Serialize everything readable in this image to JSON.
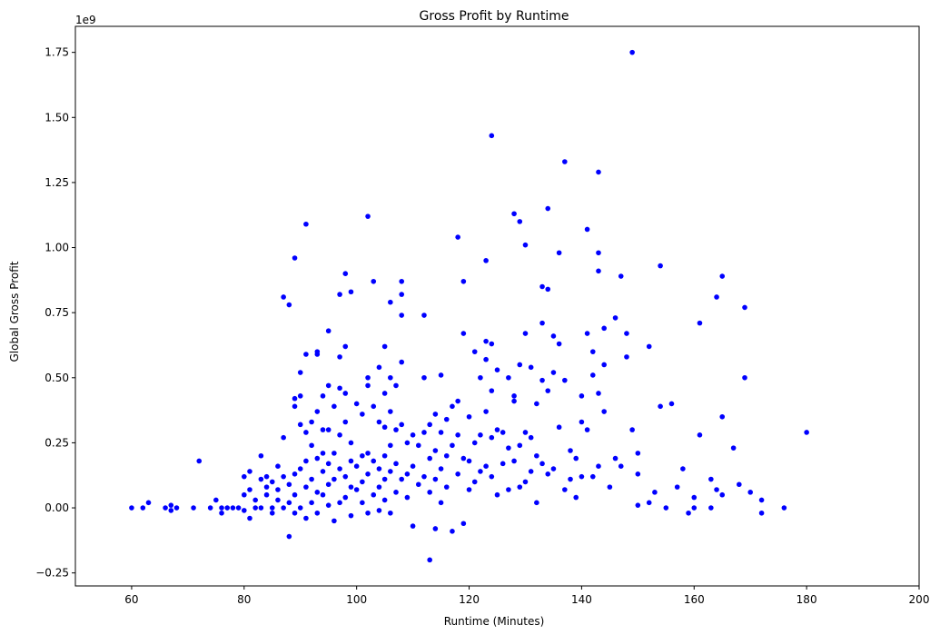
{
  "chart_data": {
    "type": "scatter",
    "title": "Gross Profit by Runtime",
    "xlabel": "Runtime (Minutes)",
    "ylabel": "Global Gross Profit",
    "offset_label": "1e9",
    "xlim": [
      50,
      200
    ],
    "ylim": [
      -0.3,
      1.85
    ],
    "xticks": [
      60,
      80,
      100,
      120,
      140,
      160,
      180,
      200
    ],
    "yticks": [
      -0.25,
      0.0,
      0.25,
      0.5,
      0.75,
      1.0,
      1.25,
      1.5,
      1.75
    ],
    "xtick_labels": [
      "60",
      "80",
      "100",
      "120",
      "140",
      "160",
      "180",
      "200"
    ],
    "ytick_labels": [
      "−0.25",
      "0.00",
      "0.25",
      "0.50",
      "0.75",
      "1.00",
      "1.25",
      "1.50",
      "1.75"
    ],
    "grid": false,
    "marker_color": "#0000ff",
    "points": [
      [
        60,
        0.0
      ],
      [
        62,
        0.0
      ],
      [
        63,
        0.02
      ],
      [
        66,
        0.0
      ],
      [
        67,
        -0.01
      ],
      [
        67,
        0.01
      ],
      [
        68,
        0.0
      ],
      [
        71,
        0.0
      ],
      [
        72,
        0.18
      ],
      [
        74,
        0.0
      ],
      [
        75,
        0.03
      ],
      [
        76,
        0.0
      ],
      [
        76,
        -0.02
      ],
      [
        77,
        0.0
      ],
      [
        78,
        0.0
      ],
      [
        79,
        0.0
      ],
      [
        80,
        0.05
      ],
      [
        80,
        0.12
      ],
      [
        80,
        -0.01
      ],
      [
        81,
        0.14
      ],
      [
        81,
        -0.04
      ],
      [
        81,
        0.07
      ],
      [
        82,
        0.0
      ],
      [
        82,
        0.03
      ],
      [
        83,
        0.2
      ],
      [
        83,
        0.11
      ],
      [
        83,
        0.0
      ],
      [
        84,
        0.08
      ],
      [
        84,
        0.05
      ],
      [
        84,
        0.12
      ],
      [
        85,
        0.0
      ],
      [
        85,
        0.1
      ],
      [
        85,
        -0.02
      ],
      [
        86,
        0.16
      ],
      [
        86,
        0.03
      ],
      [
        86,
        0.07
      ],
      [
        87,
        0.81
      ],
      [
        87,
        0.27
      ],
      [
        87,
        0.12
      ],
      [
        87,
        0.0
      ],
      [
        88,
        0.78
      ],
      [
        88,
        -0.11
      ],
      [
        88,
        0.09
      ],
      [
        88,
        0.02
      ],
      [
        89,
        0.96
      ],
      [
        89,
        0.42
      ],
      [
        89,
        0.39
      ],
      [
        89,
        0.13
      ],
      [
        89,
        0.05
      ],
      [
        89,
        -0.02
      ],
      [
        90,
        0.43
      ],
      [
        90,
        0.52
      ],
      [
        90,
        0.32
      ],
      [
        90,
        0.15
      ],
      [
        90,
        0.0
      ],
      [
        91,
        1.09
      ],
      [
        91,
        0.59
      ],
      [
        91,
        0.29
      ],
      [
        91,
        0.18
      ],
      [
        91,
        0.08
      ],
      [
        91,
        -0.04
      ],
      [
        92,
        0.33
      ],
      [
        92,
        0.24
      ],
      [
        92,
        0.11
      ],
      [
        92,
        0.02
      ],
      [
        93,
        0.6
      ],
      [
        93,
        0.59
      ],
      [
        93,
        0.37
      ],
      [
        93,
        0.19
      ],
      [
        93,
        0.06
      ],
      [
        93,
        -0.02
      ],
      [
        94,
        0.43
      ],
      [
        94,
        0.3
      ],
      [
        94,
        0.21
      ],
      [
        94,
        0.14
      ],
      [
        94,
        0.05
      ],
      [
        95,
        0.68
      ],
      [
        95,
        0.47
      ],
      [
        95,
        0.3
      ],
      [
        95,
        0.17
      ],
      [
        95,
        0.09
      ],
      [
        95,
        0.01
      ],
      [
        96,
        0.39
      ],
      [
        96,
        0.21
      ],
      [
        96,
        0.11
      ],
      [
        96,
        -0.05
      ],
      [
        97,
        0.82
      ],
      [
        97,
        0.58
      ],
      [
        97,
        0.46
      ],
      [
        97,
        0.28
      ],
      [
        97,
        0.15
      ],
      [
        97,
        0.02
      ],
      [
        98,
        0.9
      ],
      [
        98,
        0.62
      ],
      [
        98,
        0.44
      ],
      [
        98,
        0.33
      ],
      [
        98,
        0.12
      ],
      [
        98,
        0.04
      ],
      [
        99,
        0.83
      ],
      [
        99,
        0.25
      ],
      [
        99,
        0.18
      ],
      [
        99,
        0.08
      ],
      [
        99,
        -0.03
      ],
      [
        100,
        0.4
      ],
      [
        100,
        0.16
      ],
      [
        100,
        0.07
      ],
      [
        101,
        0.36
      ],
      [
        101,
        0.2
      ],
      [
        101,
        0.1
      ],
      [
        101,
        0.02
      ],
      [
        102,
        1.12
      ],
      [
        102,
        0.5
      ],
      [
        102,
        0.47
      ],
      [
        102,
        0.21
      ],
      [
        102,
        0.13
      ],
      [
        102,
        -0.02
      ],
      [
        103,
        0.87
      ],
      [
        103,
        0.39
      ],
      [
        103,
        0.18
      ],
      [
        103,
        0.05
      ],
      [
        104,
        0.54
      ],
      [
        104,
        0.33
      ],
      [
        104,
        0.15
      ],
      [
        104,
        0.08
      ],
      [
        104,
        -0.01
      ],
      [
        105,
        0.62
      ],
      [
        105,
        0.44
      ],
      [
        105,
        0.31
      ],
      [
        105,
        0.2
      ],
      [
        105,
        0.11
      ],
      [
        105,
        0.03
      ],
      [
        106,
        0.79
      ],
      [
        106,
        0.5
      ],
      [
        106,
        0.37
      ],
      [
        106,
        0.24
      ],
      [
        106,
        0.14
      ],
      [
        106,
        -0.02
      ],
      [
        107,
        0.47
      ],
      [
        107,
        0.3
      ],
      [
        107,
        0.17
      ],
      [
        107,
        0.06
      ],
      [
        108,
        0.87
      ],
      [
        108,
        0.82
      ],
      [
        108,
        0.74
      ],
      [
        108,
        0.56
      ],
      [
        108,
        0.32
      ],
      [
        108,
        0.11
      ],
      [
        109,
        0.25
      ],
      [
        109,
        0.13
      ],
      [
        109,
        0.04
      ],
      [
        110,
        0.28
      ],
      [
        110,
        0.16
      ],
      [
        110,
        -0.07
      ],
      [
        111,
        0.24
      ],
      [
        111,
        0.09
      ],
      [
        112,
        0.74
      ],
      [
        112,
        0.5
      ],
      [
        112,
        0.29
      ],
      [
        112,
        0.12
      ],
      [
        113,
        -0.2
      ],
      [
        113,
        0.32
      ],
      [
        113,
        0.19
      ],
      [
        113,
        0.06
      ],
      [
        114,
        0.36
      ],
      [
        114,
        0.22
      ],
      [
        114,
        0.11
      ],
      [
        114,
        -0.08
      ],
      [
        115,
        0.51
      ],
      [
        115,
        0.29
      ],
      [
        115,
        0.15
      ],
      [
        115,
        0.02
      ],
      [
        116,
        0.34
      ],
      [
        116,
        0.2
      ],
      [
        116,
        0.08
      ],
      [
        117,
        0.39
      ],
      [
        117,
        0.24
      ],
      [
        117,
        -0.09
      ],
      [
        118,
        1.04
      ],
      [
        118,
        0.41
      ],
      [
        118,
        0.28
      ],
      [
        118,
        0.13
      ],
      [
        119,
        0.87
      ],
      [
        119,
        0.67
      ],
      [
        119,
        0.19
      ],
      [
        119,
        -0.06
      ],
      [
        120,
        0.35
      ],
      [
        120,
        0.18
      ],
      [
        120,
        0.07
      ],
      [
        121,
        0.6
      ],
      [
        121,
        0.25
      ],
      [
        121,
        0.1
      ],
      [
        122,
        0.5
      ],
      [
        122,
        0.28
      ],
      [
        122,
        0.14
      ],
      [
        123,
        0.95
      ],
      [
        123,
        0.64
      ],
      [
        123,
        0.57
      ],
      [
        123,
        0.37
      ],
      [
        123,
        0.16
      ],
      [
        124,
        1.43
      ],
      [
        124,
        0.63
      ],
      [
        124,
        0.45
      ],
      [
        124,
        0.27
      ],
      [
        124,
        0.12
      ],
      [
        125,
        0.53
      ],
      [
        125,
        0.3
      ],
      [
        125,
        0.05
      ],
      [
        126,
        0.29
      ],
      [
        126,
        0.17
      ],
      [
        127,
        0.5
      ],
      [
        127,
        0.23
      ],
      [
        127,
        0.07
      ],
      [
        128,
        1.13
      ],
      [
        128,
        0.43
      ],
      [
        128,
        0.41
      ],
      [
        128,
        0.18
      ],
      [
        129,
        1.1
      ],
      [
        129,
        0.55
      ],
      [
        129,
        0.24
      ],
      [
        129,
        0.08
      ],
      [
        130,
        1.01
      ],
      [
        130,
        0.67
      ],
      [
        130,
        0.29
      ],
      [
        130,
        0.1
      ],
      [
        131,
        0.54
      ],
      [
        131,
        0.27
      ],
      [
        131,
        0.14
      ],
      [
        132,
        0.4
      ],
      [
        132,
        0.2
      ],
      [
        132,
        0.02
      ],
      [
        133,
        0.85
      ],
      [
        133,
        0.71
      ],
      [
        133,
        0.49
      ],
      [
        133,
        0.17
      ],
      [
        134,
        1.15
      ],
      [
        134,
        0.84
      ],
      [
        134,
        0.45
      ],
      [
        134,
        0.13
      ],
      [
        135,
        0.66
      ],
      [
        135,
        0.52
      ],
      [
        135,
        0.15
      ],
      [
        136,
        0.98
      ],
      [
        136,
        0.63
      ],
      [
        136,
        0.31
      ],
      [
        137,
        1.33
      ],
      [
        137,
        0.49
      ],
      [
        137,
        0.07
      ],
      [
        138,
        0.22
      ],
      [
        138,
        0.11
      ],
      [
        139,
        0.19
      ],
      [
        139,
        0.04
      ],
      [
        140,
        0.43
      ],
      [
        140,
        0.33
      ],
      [
        140,
        0.12
      ],
      [
        141,
        1.07
      ],
      [
        141,
        0.67
      ],
      [
        141,
        0.3
      ],
      [
        142,
        0.6
      ],
      [
        142,
        0.51
      ],
      [
        142,
        0.12
      ],
      [
        143,
        1.29
      ],
      [
        143,
        0.98
      ],
      [
        143,
        0.91
      ],
      [
        143,
        0.44
      ],
      [
        143,
        0.16
      ],
      [
        144,
        0.69
      ],
      [
        144,
        0.55
      ],
      [
        144,
        0.37
      ],
      [
        145,
        0.08
      ],
      [
        146,
        0.73
      ],
      [
        146,
        0.19
      ],
      [
        147,
        0.89
      ],
      [
        147,
        0.16
      ],
      [
        148,
        0.67
      ],
      [
        148,
        0.58
      ],
      [
        149,
        1.75
      ],
      [
        149,
        0.3
      ],
      [
        150,
        0.21
      ],
      [
        150,
        0.13
      ],
      [
        150,
        0.01
      ],
      [
        152,
        0.62
      ],
      [
        152,
        0.02
      ],
      [
        153,
        0.06
      ],
      [
        154,
        0.93
      ],
      [
        154,
        0.39
      ],
      [
        155,
        0.0
      ],
      [
        156,
        0.4
      ],
      [
        157,
        0.08
      ],
      [
        158,
        0.15
      ],
      [
        159,
        -0.02
      ],
      [
        160,
        0.04
      ],
      [
        160,
        0.0
      ],
      [
        161,
        0.71
      ],
      [
        161,
        0.28
      ],
      [
        163,
        0.11
      ],
      [
        163,
        0.0
      ],
      [
        164,
        0.81
      ],
      [
        164,
        0.07
      ],
      [
        165,
        0.89
      ],
      [
        165,
        0.35
      ],
      [
        165,
        0.05
      ],
      [
        167,
        0.23
      ],
      [
        168,
        0.09
      ],
      [
        169,
        0.77
      ],
      [
        169,
        0.5
      ],
      [
        170,
        0.06
      ],
      [
        172,
        0.03
      ],
      [
        172,
        -0.02
      ],
      [
        176,
        0.0
      ],
      [
        180,
        0.29
      ]
    ]
  }
}
